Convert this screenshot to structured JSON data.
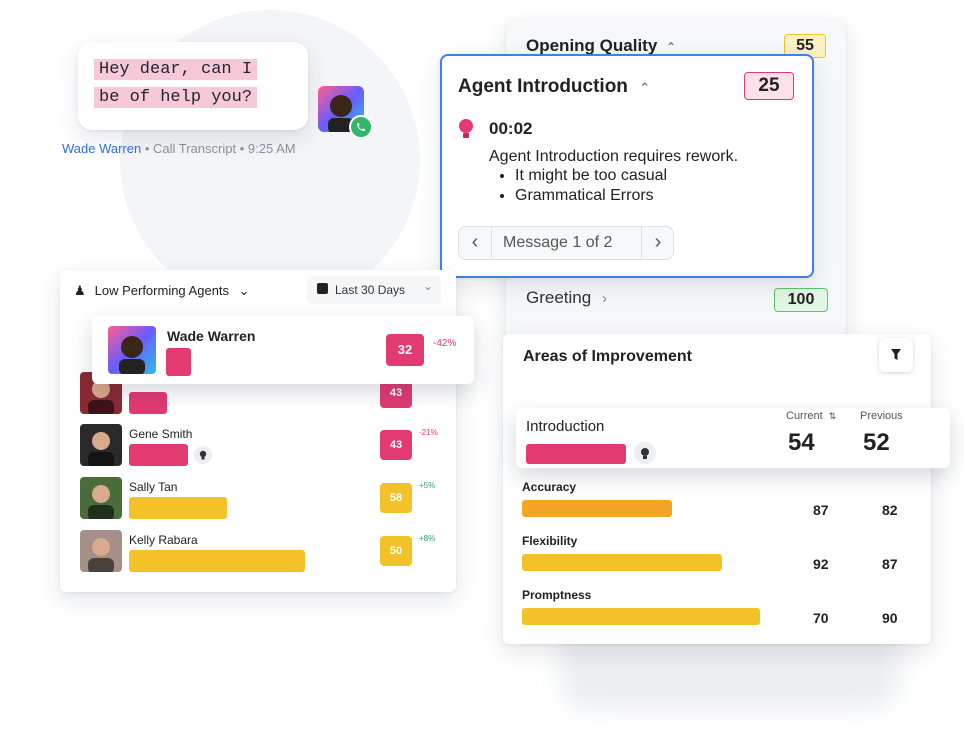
{
  "chat": {
    "line1": "Hey dear, can I",
    "line2": "be of help you?",
    "agent": "Wade Warren",
    "meta": "• Call Transcript • 9:25 AM"
  },
  "opening": {
    "title": "Opening Quality",
    "score": "55"
  },
  "agent_intro": {
    "title": "Agent Introduction",
    "score": "25",
    "time": "00:02",
    "message": "Agent Introduction requires rework.",
    "bullets": [
      "It might be too casual",
      "Grammatical Errors"
    ],
    "pager": "Message 1 of 2"
  },
  "greeting": {
    "title": "Greeting",
    "score": "100"
  },
  "low_perf": {
    "title": "Low Performing Agents",
    "date_range": "Last 30 Days",
    "highlight": {
      "name": "Wade Warren",
      "score": "32",
      "delta": "-42%",
      "fraction": 0.12
    },
    "rows": [
      {
        "name": "",
        "score": "43",
        "delta": "",
        "fraction": 0.18,
        "color": "#e13b72",
        "delta_color": "#e13b72"
      },
      {
        "name": "Gene Smith",
        "score": "43",
        "delta": "-21%",
        "fraction": 0.28,
        "color": "#e13b72",
        "delta_color": "#e13b72"
      },
      {
        "name": "Sally Tan",
        "score": "58",
        "delta": "+5%",
        "fraction": 0.46,
        "color": "#f3c228",
        "delta_color": "#2ea869"
      },
      {
        "name": "Kelly Rabara",
        "score": "50",
        "delta": "+8%",
        "fraction": 0.83,
        "color": "#f3c228",
        "delta_color": "#2ea869"
      }
    ]
  },
  "improvement": {
    "title": "Areas of Improvement",
    "col_current": "Current",
    "col_previous": "Previous",
    "highlight": {
      "label": "Introduction",
      "current": "54",
      "previous": "52",
      "fraction": 0.42
    },
    "rows": [
      {
        "label": "Accuracy",
        "current": "87",
        "previous": "82",
        "fraction": 0.63,
        "color": "#f5a425"
      },
      {
        "label": "Flexibility",
        "current": "92",
        "previous": "87",
        "fraction": 0.84,
        "color": "#f3c228"
      },
      {
        "label": "Promptness",
        "current": "70",
        "previous": "90",
        "fraction": 1.0,
        "color": "#f3c228"
      }
    ]
  }
}
